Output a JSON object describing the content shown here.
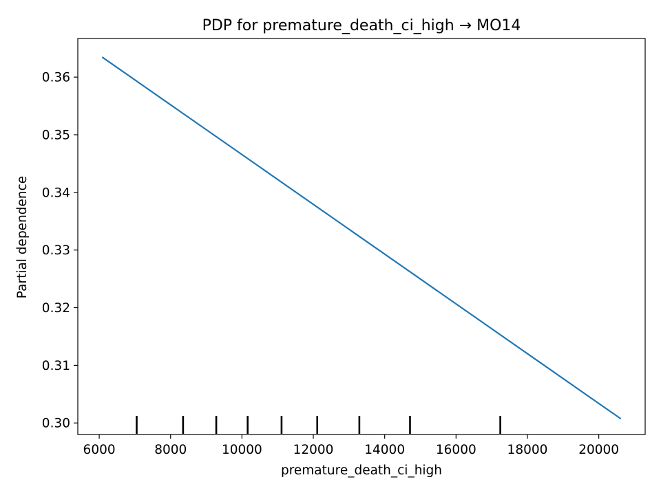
{
  "chart_data": {
    "type": "line",
    "title": "PDP for premature_death_ci_high → MO14",
    "xlabel": "premature_death_ci_high",
    "ylabel": "Partial dependence",
    "xlim": [
      5400,
      21300
    ],
    "ylim": [
      0.298,
      0.3667
    ],
    "x_ticks": [
      6000,
      8000,
      10000,
      12000,
      14000,
      16000,
      18000,
      20000
    ],
    "x_tick_labels": [
      "6000",
      "8000",
      "10000",
      "12000",
      "14000",
      "16000",
      "18000",
      "20000"
    ],
    "y_ticks": [
      0.3,
      0.31,
      0.32,
      0.33,
      0.34,
      0.35,
      0.36
    ],
    "y_tick_labels": [
      "0.30",
      "0.31",
      "0.32",
      "0.33",
      "0.34",
      "0.35",
      "0.36"
    ],
    "grid": false,
    "series": [
      {
        "x": [
          6100,
          20600
        ],
        "y": [
          0.3634,
          0.3008
        ],
        "color": "#1f77b4"
      }
    ],
    "deciles": [
      7050,
      8350,
      9280,
      10160,
      11110,
      12110,
      13290,
      14710,
      17240
    ],
    "decile_color": "#000000"
  }
}
